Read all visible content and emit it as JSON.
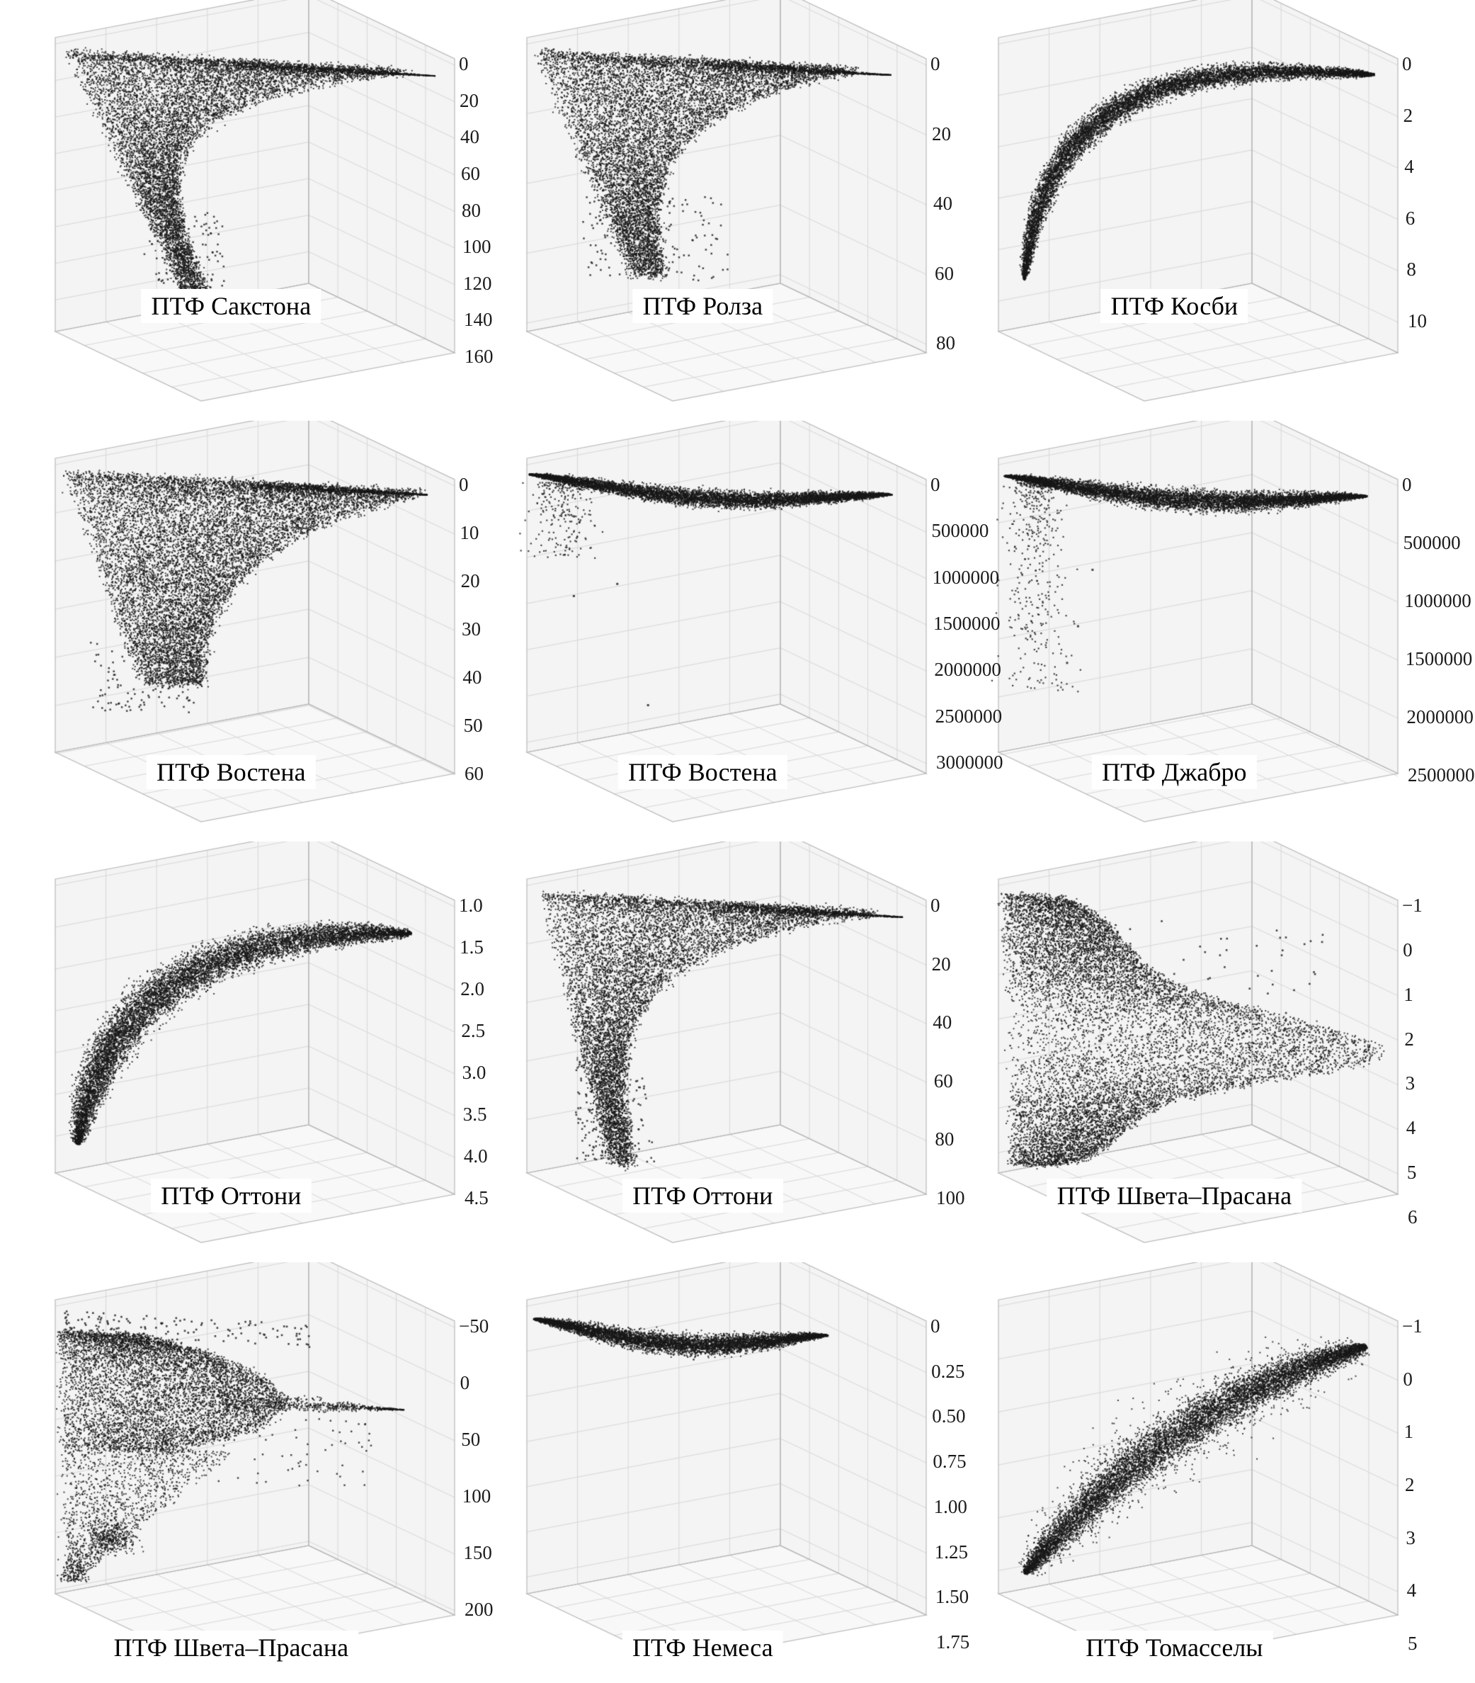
{
  "figure": {
    "background": "#ffffff",
    "point_color": "#1a1a1a",
    "grid_color": "#d7d7d7",
    "pane_color": "#f4f4f4",
    "label_color": "#000000",
    "layout": "3 columns x 4 rows of 3D scatter plots"
  },
  "chart_data": [
    {
      "type": "scatter",
      "projection": "3d",
      "title": "ПТФ Сакстона",
      "z_ticks": [
        "0",
        "20",
        "40",
        "60",
        "80",
        "100",
        "120",
        "140",
        "160"
      ],
      "shape": "funnel",
      "params": {
        "n": 9000,
        "top": 0.03,
        "depth": 0.82,
        "span": 0.8,
        "decay": 5.5,
        "leftStart": 0.04,
        "leftSlope": 0.34,
        "powV": 2.2,
        "spike": {
          "v": 0.035,
          "from": 0.45,
          "to": 0.96
        },
        "tail": {
          "n": 130,
          "u0": 0.22,
          "u1": 0.42,
          "v0": 0.55,
          "v1": 0.93
        }
      }
    },
    {
      "type": "scatter",
      "projection": "3d",
      "title": "ПТФ Ролза",
      "z_ticks": [
        "0",
        "20",
        "40",
        "60",
        "80"
      ],
      "shape": "funnel",
      "params": {
        "n": 9500,
        "top": 0.03,
        "depth": 0.76,
        "span": 0.76,
        "decay": 4.0,
        "leftStart": 0.03,
        "leftSlope": 0.3,
        "powV": 2.0,
        "spike": {
          "v": 0.035,
          "from": 0.45,
          "to": 0.92
        },
        "tail": {
          "n": 150,
          "u0": 0.15,
          "u1": 0.5,
          "v0": 0.5,
          "v1": 0.8
        }
      }
    },
    {
      "type": "scatter",
      "projection": "3d",
      "title": "ПТФ Косби",
      "z_ticks": [
        "0",
        "2",
        "4",
        "6",
        "8",
        "10"
      ],
      "shape": "banana",
      "params": {
        "n": 8500,
        "bez": [
          [
            0.95,
            0.035
          ],
          [
            0.5,
            0.03
          ],
          [
            0.13,
            0.11
          ],
          [
            0.06,
            0.82
          ]
        ],
        "thick": 0.048,
        "thickPow": 0.55
      }
    },
    {
      "type": "scatter",
      "projection": "3d",
      "title": "ПТФ Востена",
      "z_ticks": [
        "0",
        "10",
        "20",
        "30",
        "40",
        "50",
        "60"
      ],
      "shape": "funnel",
      "params": {
        "n": 11000,
        "top": 0.03,
        "depth": 0.72,
        "span": 0.85,
        "decay": 3.0,
        "leftStart": 0.03,
        "leftSlope": 0.26,
        "powV": 1.8,
        "spike": {
          "v": 0.03,
          "from": 0.5,
          "to": 0.94
        },
        "tail": {
          "n": 120,
          "u0": 0.1,
          "u1": 0.35,
          "v0": 0.6,
          "v1": 0.85
        }
      }
    },
    {
      "type": "scatter",
      "projection": "3d",
      "title": "ПТФ Востена",
      "z_ticks": [
        "0",
        "500000",
        "1000000",
        "1500000",
        "2000000",
        "2500000",
        "3000000"
      ],
      "shape": "lens",
      "params": {
        "n": 7000,
        "u0": 0.02,
        "u1": 0.92,
        "vc": 0.035,
        "sag": 0.05,
        "thick": 0.04,
        "tail": {
          "n": 240,
          "uc": 0.1,
          "uw": 0.06,
          "v0": 0.06,
          "v1": 0.32
        },
        "outliers": [
          [
            0.3,
            0.82
          ],
          [
            0.23,
            0.4
          ],
          [
            0.12,
            0.45
          ]
        ]
      }
    },
    {
      "type": "scatter",
      "projection": "3d",
      "title": "ПТФ Джабро",
      "z_ticks": [
        "0",
        "500000",
        "1000000",
        "1500000",
        "2000000",
        "2500000"
      ],
      "shape": "lens",
      "params": {
        "n": 7500,
        "u0": 0.03,
        "u1": 0.93,
        "vc": 0.04,
        "sag": 0.05,
        "thick": 0.05,
        "tail": {
          "n": 420,
          "uc": 0.1,
          "uw": 0.05,
          "v0": 0.06,
          "v1": 0.78
        },
        "outliers": [
          [
            0.2,
            0.55
          ],
          [
            0.17,
            0.68
          ],
          [
            0.24,
            0.35
          ]
        ]
      }
    },
    {
      "type": "scatter",
      "projection": "3d",
      "title": "ПТФ Оттони",
      "z_ticks": [
        "1.0",
        "1.5",
        "2.0",
        "2.5",
        "3.0",
        "3.5",
        "4.0",
        "4.5"
      ],
      "shape": "banana",
      "params": {
        "n": 9000,
        "bez": [
          [
            0.9,
            0.1
          ],
          [
            0.4,
            0.12
          ],
          [
            0.12,
            0.38
          ],
          [
            0.05,
            0.9
          ]
        ],
        "thick": 0.08,
        "thickPow": 0.5
      }
    },
    {
      "type": "scatter",
      "projection": "3d",
      "title": "ПТФ Оттони",
      "z_ticks": [
        "0",
        "20",
        "40",
        "60",
        "80",
        "100"
      ],
      "shape": "funnel",
      "params": {
        "n": 9000,
        "top": 0.03,
        "depth": 0.93,
        "span": 0.78,
        "decay": 4.6,
        "leftStart": 0.05,
        "leftSlope": 0.16,
        "powV": 2.1,
        "spike": {
          "v": 0.035,
          "from": 0.5,
          "to": 0.95
        },
        "tail": {
          "n": 160,
          "u0": 0.12,
          "u1": 0.3,
          "v0": 0.6,
          "v1": 0.95
        }
      }
    },
    {
      "type": "scatter",
      "projection": "3d",
      "title": "ПТФ Швета–Прасана",
      "z_ticks": [
        "−1",
        "0",
        "1",
        "2",
        "3",
        "4",
        "5",
        "6"
      ],
      "shape": "blob_spike",
      "params": {
        "n": 11000
      }
    },
    {
      "type": "scatter",
      "projection": "3d",
      "title": "ПТФ Швета–Прасана",
      "z_ticks": [
        "−50",
        "0",
        "50",
        "100",
        "150",
        "200"
      ],
      "shape": "blob_spike_down",
      "params": {
        "n": 9200
      }
    },
    {
      "type": "scatter",
      "projection": "3d",
      "title": "ПТФ Немеса",
      "z_ticks": [
        "0",
        "0.25",
        "0.50",
        "0.75",
        "1.00",
        "1.25",
        "1.50",
        "1.75"
      ],
      "shape": "lens",
      "params": {
        "n": 6500,
        "u0": 0.03,
        "u1": 0.76,
        "vc": 0.045,
        "sag": 0.06,
        "thick": 0.05
      }
    },
    {
      "type": "scatter",
      "projection": "3d",
      "title": "ПТФ Томасселы",
      "z_ticks": [
        "−1",
        "0",
        "1",
        "2",
        "3",
        "4",
        "5"
      ],
      "shape": "diag_band",
      "params": {
        "n": 9500,
        "bez": [
          [
            0.06,
            0.93
          ],
          [
            0.3,
            0.52
          ],
          [
            0.62,
            0.22
          ],
          [
            0.93,
            0.07
          ]
        ],
        "thick": 0.08,
        "thickPow": 0.5,
        "fuzz": 0.12
      }
    }
  ]
}
